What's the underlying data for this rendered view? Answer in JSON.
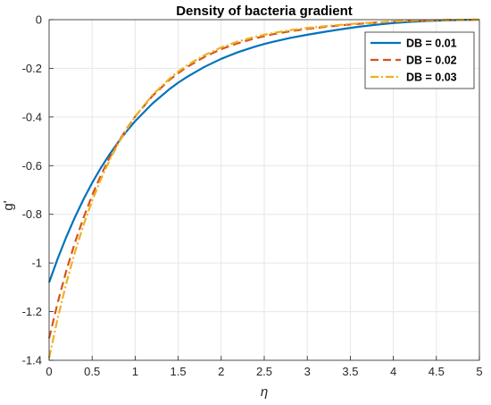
{
  "chart_data": {
    "type": "line",
    "title": "Density of bacteria gradient",
    "xlabel": "η",
    "ylabel": "g'",
    "xlim": [
      0,
      5
    ],
    "ylim": [
      -1.4,
      0
    ],
    "xticks": [
      "0",
      "0.5",
      "1",
      "1.5",
      "2",
      "2.5",
      "3",
      "3.5",
      "4",
      "4.5",
      "5"
    ],
    "yticks": [
      "0",
      "-0.2",
      "-0.4",
      "-0.6",
      "-0.8",
      "-1",
      "-1.2",
      "-1.4"
    ],
    "grid": true,
    "legend_position": "top-right",
    "x": [
      0,
      0.1,
      0.2,
      0.3,
      0.4,
      0.5,
      0.6,
      0.7,
      0.8,
      0.9,
      1.0,
      1.2,
      1.4,
      1.5,
      1.6,
      1.8,
      2.0,
      2.2,
      2.4,
      2.5,
      2.6,
      2.8,
      3.0,
      3.2,
      3.4,
      3.5,
      3.6,
      3.8,
      4.0,
      4.2,
      4.4,
      4.5,
      4.6,
      4.8,
      5.0
    ],
    "series": [
      {
        "name": "DB = 0.01",
        "color": "#0072BD",
        "style": "solid",
        "values": [
          -1.08,
          -0.982,
          -0.893,
          -0.812,
          -0.738,
          -0.671,
          -0.61,
          -0.555,
          -0.505,
          -0.459,
          -0.417,
          -0.345,
          -0.285,
          -0.259,
          -0.236,
          -0.195,
          -0.161,
          -0.133,
          -0.11,
          -0.1,
          -0.091,
          -0.075,
          -0.062,
          -0.05,
          -0.039,
          -0.034,
          -0.029,
          -0.021,
          -0.014,
          -0.009,
          -0.005,
          -0.004,
          -0.003,
          -0.001,
          0.0
        ]
      },
      {
        "name": "DB = 0.02",
        "color": "#D95319",
        "style": "dashed",
        "values": [
          -1.31,
          -1.163,
          -1.032,
          -0.916,
          -0.814,
          -0.722,
          -0.641,
          -0.569,
          -0.505,
          -0.449,
          -0.398,
          -0.314,
          -0.247,
          -0.22,
          -0.195,
          -0.154,
          -0.121,
          -0.096,
          -0.076,
          -0.068,
          -0.06,
          -0.048,
          -0.038,
          -0.03,
          -0.023,
          -0.02,
          -0.017,
          -0.012,
          -0.008,
          -0.005,
          -0.003,
          -0.002,
          -0.001,
          -0.0005,
          0.0
        ]
      },
      {
        "name": "DB = 0.03",
        "color": "#EDB120",
        "style": "dashdot",
        "values": [
          -1.39,
          -1.227,
          -1.083,
          -0.956,
          -0.844,
          -0.745,
          -0.657,
          -0.58,
          -0.512,
          -0.452,
          -0.398,
          -0.31,
          -0.242,
          -0.213,
          -0.188,
          -0.147,
          -0.114,
          -0.089,
          -0.07,
          -0.062,
          -0.055,
          -0.043,
          -0.034,
          -0.027,
          -0.021,
          -0.018,
          -0.015,
          -0.011,
          -0.007,
          -0.004,
          -0.002,
          -0.002,
          -0.001,
          -0.0003,
          0.0
        ]
      }
    ]
  }
}
